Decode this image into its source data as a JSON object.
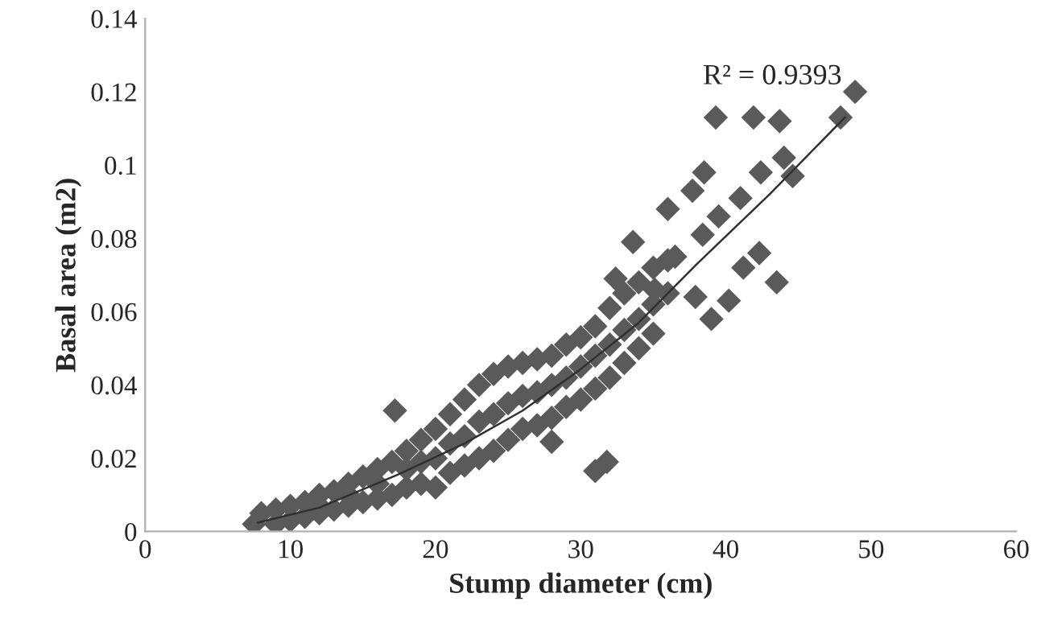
{
  "chart_data": {
    "type": "scatter",
    "xlabel": "Stump diameter (cm)",
    "ylabel": "Basal area (m2)",
    "xlim": [
      0,
      60
    ],
    "xticks": [
      0,
      10,
      20,
      30,
      40,
      50,
      60
    ],
    "ylim": [
      0,
      0.14
    ],
    "yticks": [
      0,
      0.02,
      0.04,
      0.06,
      0.08,
      0.1,
      0.12,
      0.14
    ],
    "grid": false,
    "legend": false,
    "marker": "diamond",
    "annotations": [
      "R² = 0.9393"
    ],
    "series": [
      {
        "color": "#5a5a5a",
        "x": [
          7.5,
          9,
          10,
          11,
          12,
          13,
          14,
          15,
          16,
          17,
          18,
          19,
          20,
          21,
          22,
          23,
          24,
          25,
          26,
          27,
          28,
          29,
          30,
          31,
          32,
          33,
          34,
          35,
          8,
          9,
          10,
          11,
          12,
          13,
          14,
          15,
          16,
          17,
          18,
          19,
          20,
          21,
          22,
          23,
          24,
          25,
          26,
          27,
          28,
          29,
          30,
          31,
          32,
          33,
          34,
          35,
          36,
          12,
          14,
          16,
          18,
          20,
          22,
          24,
          26,
          28,
          30,
          32,
          34,
          36,
          19,
          21,
          23,
          25,
          27,
          29,
          31,
          33,
          35,
          17.2,
          28,
          31,
          31.8,
          39.3,
          41.9,
          43.7,
          48.9,
          47.9,
          44,
          44.6,
          42.4,
          38.5,
          37.7,
          41,
          39.5,
          38.4,
          36,
          33.6,
          42.3,
          41.2,
          43.5,
          40.2,
          39,
          37.9,
          32.4,
          35.1,
          36.5
        ],
        "values": [
          0.002,
          0.002,
          0.003,
          0.004,
          0.005,
          0.006,
          0.007,
          0.008,
          0.009,
          0.01,
          0.012,
          0.013,
          0.012,
          0.016,
          0.018,
          0.02,
          0.022,
          0.025,
          0.028,
          0.029,
          0.031,
          0.034,
          0.036,
          0.039,
          0.042,
          0.046,
          0.05,
          0.054,
          0.005,
          0.006,
          0.007,
          0.008,
          0.01,
          0.011,
          0.013,
          0.015,
          0.017,
          0.019,
          0.022,
          0.025,
          0.028,
          0.032,
          0.036,
          0.04,
          0.043,
          0.045,
          0.046,
          0.047,
          0.048,
          0.051,
          0.053,
          0.056,
          0.061,
          0.065,
          0.068,
          0.072,
          0.074,
          0.007,
          0.01,
          0.013,
          0.017,
          0.02,
          0.026,
          0.032,
          0.037,
          0.04,
          0.045,
          0.051,
          0.058,
          0.065,
          0.019,
          0.024,
          0.03,
          0.035,
          0.038,
          0.042,
          0.048,
          0.055,
          0.062,
          0.033,
          0.0245,
          0.0165,
          0.019,
          0.113,
          0.113,
          0.112,
          0.12,
          0.113,
          0.102,
          0.097,
          0.098,
          0.098,
          0.093,
          0.091,
          0.086,
          0.081,
          0.088,
          0.079,
          0.076,
          0.072,
          0.068,
          0.063,
          0.058,
          0.064,
          0.069,
          0.066,
          0.075
        ]
      },
      {
        "type": "line",
        "color": "#303030",
        "marker": "none",
        "x": [
          7.75,
          12,
          17.4,
          22,
          26,
          29.9,
          34,
          38,
          43,
          48.2
        ],
        "values": [
          0.0024,
          0.0065,
          0.0155,
          0.024,
          0.033,
          0.044,
          0.057,
          0.073,
          0.092,
          0.113
        ]
      }
    ]
  }
}
